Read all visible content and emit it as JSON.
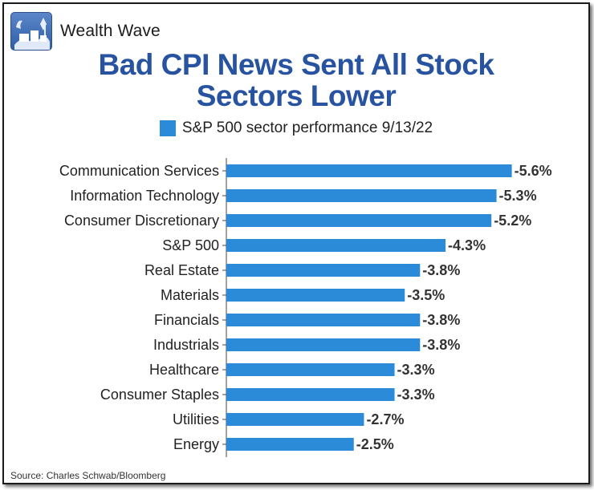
{
  "brand": {
    "name": "Wealth Wave",
    "logo_icon": "wealth-wave-logo-icon"
  },
  "title_line1": "Bad CPI News Sent All Stock",
  "title_line2": "Sectors Lower",
  "source": "Source: Charles Schwab/Bloomberg",
  "colors": {
    "bar": "#2b8bd8",
    "title": "#2753a0",
    "text": "#222222",
    "axis": "#444444"
  },
  "chart_data": {
    "type": "bar",
    "orientation": "horizontal",
    "categories": [
      "Communication Services",
      "Information Technology",
      "Consumer Discretionary",
      "S&P 500",
      "Real Estate",
      "Materials",
      "Financials",
      "Industrials",
      "Healthcare",
      "Consumer Staples",
      "Utilities",
      "Energy"
    ],
    "series": [
      {
        "name": "S&P 500 sector performance 9/13/22",
        "values": [
          -5.6,
          -5.3,
          -5.2,
          -4.3,
          -3.8,
          -3.5,
          -3.8,
          -3.8,
          -3.3,
          -3.3,
          -2.7,
          -2.5
        ],
        "labels": [
          "-5.6%",
          "-5.3%",
          "-5.2%",
          "-4.3%",
          "-3.8%",
          "-3.5%",
          "-3.8%",
          "-3.8%",
          "-3.3%",
          "-3.3%",
          "-2.7%",
          "-2.5%"
        ]
      }
    ],
    "value_unit": "%",
    "legend_position": "top",
    "grid": false
  }
}
